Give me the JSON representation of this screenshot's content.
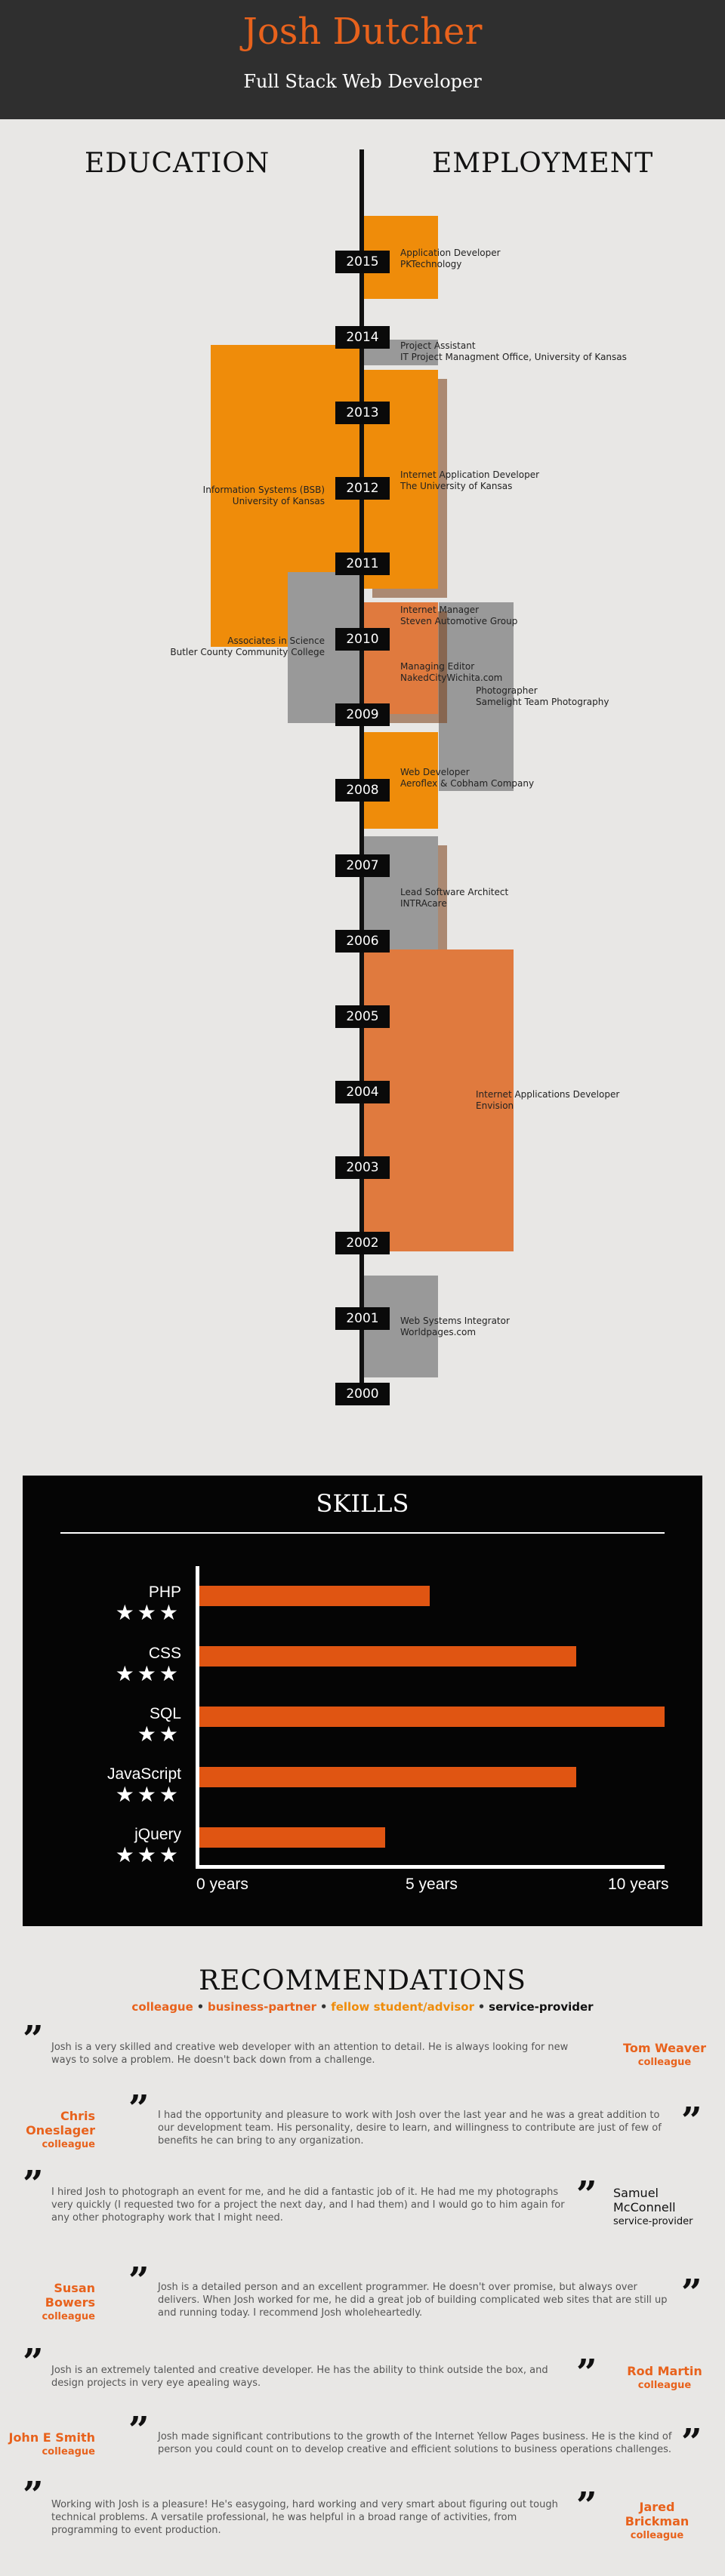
{
  "header": {
    "name": "Josh Dutcher",
    "role": "Full Stack Web Developer"
  },
  "timeline": {
    "education_heading": "EDUCATION",
    "employment_heading": "EMPLOYMENT",
    "years": [
      "2015",
      "2014",
      "2013",
      "2012",
      "2011",
      "2010",
      "2009",
      "2008",
      "2007",
      "2006",
      "2005",
      "2004",
      "2003",
      "2002",
      "2001",
      "2000"
    ],
    "education": [
      {
        "line1": "Information Systems (BSB)",
        "line2": "University of Kansas"
      },
      {
        "line1": "Associates in Science",
        "line2": "Butler County Community College"
      }
    ],
    "employment": [
      {
        "title": "Application Developer",
        "company": "PKTechnology"
      },
      {
        "title": "Project Assistant",
        "company": "IT Project Managment Office, University of Kansas"
      },
      {
        "title": "Internet Application Developer",
        "company": "The University of Kansas"
      },
      {
        "title": "Internet Manager",
        "company": "Steven Automotive Group"
      },
      {
        "title": "Managing Editor",
        "company": "NakedCityWichita.com"
      },
      {
        "title": "Photographer",
        "company": "Samelight Team Photography"
      },
      {
        "title": "Web Developer",
        "company": "Aeroflex & Cobham Company"
      },
      {
        "title": "Lead Software Architect",
        "company": "INTRAcare"
      },
      {
        "title": "Internet Applications Developer",
        "company": "Envision"
      },
      {
        "title": "Web Systems Integrator",
        "company": "Worldpages.com"
      }
    ],
    "colors": {
      "orange": "#ef8c0a",
      "dark_orange": "#e07a3e",
      "gray": "#999999"
    }
  },
  "skills": {
    "title": "SKILLS",
    "items": [
      {
        "name": "PHP",
        "stars": "★★★"
      },
      {
        "name": "CSS",
        "stars": "★★★"
      },
      {
        "name": "SQL",
        "stars": "★★"
      },
      {
        "name": "JavaScript",
        "stars": "★★★"
      },
      {
        "name": "jQuery",
        "stars": "★★★"
      }
    ],
    "ticks": [
      "0 years",
      "5 years",
      "10 years"
    ]
  },
  "chart_data": {
    "type": "bar",
    "orientation": "horizontal",
    "title": "SKILLS",
    "categories": [
      "PHP",
      "CSS",
      "SQL",
      "JavaScript",
      "jQuery"
    ],
    "values": [
      5.2,
      8.5,
      10.5,
      8.5,
      4.2
    ],
    "xlim": [
      0,
      10.5
    ],
    "xticks": [
      "0 years",
      "5 years",
      "10 years"
    ],
    "bar_color": "#e05512"
  },
  "recommendations": {
    "title": "RECOMMENDATIONS",
    "legend": {
      "colleague": "colleague",
      "business_partner": "business-partner",
      "fellow_student": "fellow student/advisor",
      "service_provider": "service-provider",
      "sep": "•"
    },
    "items": [
      {
        "name": "Tom Weaver",
        "relation": "colleague",
        "text": "Josh is a very skilled and creative web developer with an attention to detail. He is always looking for new ways to solve a problem. He doesn't back down from a challenge."
      },
      {
        "name": "Chris Oneslager",
        "relation": "colleague",
        "text": "I had the opportunity and pleasure to work with Josh over the last year and he was a great addition to our development team. His personality, desire to learn, and willingness to contribute are just of few of benefits he can bring to any organization."
      },
      {
        "name": "Samuel McConnell",
        "relation": "service-provider",
        "text": "I hired Josh to photograph an event for me, and he did a fantastic job of it. He had me my photographs very quickly (I requested two for a project the next day, and I had them) and I would go to him again for any other photography work that I might need."
      },
      {
        "name": "Susan Bowers",
        "relation": "colleague",
        "text": "Josh is a detailed person and an excellent programmer. He doesn't over promise, but always over delivers. When Josh worked for me, he did a great job of building complicated web sites that are still up and running today. I recommend Josh wholeheartedly."
      },
      {
        "name": "Rod Martin",
        "relation": "colleague",
        "text": "Josh is an extremely talented and creative developer. He has the ability to think outside the box, and design projects in very eye apealing ways."
      },
      {
        "name": "John E Smith",
        "relation": "colleague",
        "text": "Josh made significant contributions to the growth of the Internet Yellow Pages business. He is the kind of person you could count on to develop creative and efficient solutions to business operations challenges."
      },
      {
        "name": "Jared Brickman",
        "relation": "colleague",
        "text": "Working with Josh is a pleasure! He's easygoing, hard working and very smart about figuring out tough technical problems. A versatile professional, he was helpful in a broad range of activities, from programming to event production."
      }
    ],
    "quote_mark": "”",
    "colors": {
      "colleague": "#e8621c",
      "business_partner": "#e8621c",
      "fellow_student": "#ef8c0a",
      "service_provider": "#111111"
    }
  }
}
